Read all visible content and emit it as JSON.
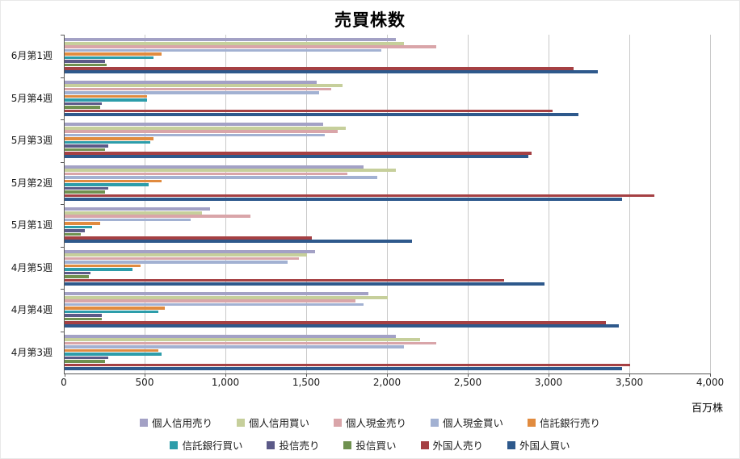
{
  "title": "売買株数",
  "axis_unit_label": "百万株",
  "chart_data": {
    "type": "bar",
    "orientation": "horizontal",
    "title": "売買株数",
    "xlabel": "百万株",
    "ylabel": "",
    "xlim": [
      0,
      4000
    ],
    "x_tick_step": 500,
    "x_ticks": [
      "0",
      "500",
      "1,000",
      "1,500",
      "2,000",
      "2,500",
      "3,000",
      "3,500",
      "4,000"
    ],
    "grid": true,
    "legend_position": "bottom",
    "categories": [
      "6月第1週",
      "5月第4週",
      "5月第3週",
      "5月第2週",
      "5月第1週",
      "4月第5週",
      "4月第4週",
      "4月第3週"
    ],
    "series": [
      {
        "name": "個人信用売り",
        "color": "#a3a1c5",
        "values": [
          2050,
          1560,
          1600,
          1850,
          900,
          1550,
          1880,
          2050
        ]
      },
      {
        "name": "個人信用買い",
        "color": "#c6cf9b",
        "values": [
          2100,
          1720,
          1740,
          2050,
          850,
          1500,
          2000,
          2200
        ]
      },
      {
        "name": "個人現金売り",
        "color": "#d9a5a9",
        "values": [
          2300,
          1650,
          1690,
          1750,
          1150,
          1450,
          1800,
          2300
        ]
      },
      {
        "name": "個人現金買い",
        "color": "#a2b1d2",
        "values": [
          1960,
          1575,
          1610,
          1935,
          780,
          1380,
          1850,
          2100
        ]
      },
      {
        "name": "信託銀行売り",
        "color": "#e18b3f",
        "values": [
          600,
          510,
          550,
          600,
          220,
          470,
          620,
          580
        ]
      },
      {
        "name": "信託銀行買い",
        "color": "#2d9daa",
        "values": [
          550,
          510,
          530,
          520,
          170,
          420,
          580,
          600
        ]
      },
      {
        "name": "投信売り",
        "color": "#5c5a88",
        "values": [
          250,
          230,
          270,
          270,
          125,
          160,
          230,
          270
        ]
      },
      {
        "name": "投信買い",
        "color": "#6f9150",
        "values": [
          260,
          220,
          250,
          250,
          100,
          150,
          230,
          250
        ]
      },
      {
        "name": "外国人売り",
        "color": "#a54043",
        "values": [
          3150,
          3020,
          2890,
          3650,
          1530,
          2720,
          3350,
          3500
        ]
      },
      {
        "name": "外国人買い",
        "color": "#2e598c",
        "values": [
          3300,
          3180,
          2870,
          3450,
          2150,
          2970,
          3430,
          3450
        ]
      }
    ],
    "legend_rows": [
      5,
      5
    ]
  }
}
